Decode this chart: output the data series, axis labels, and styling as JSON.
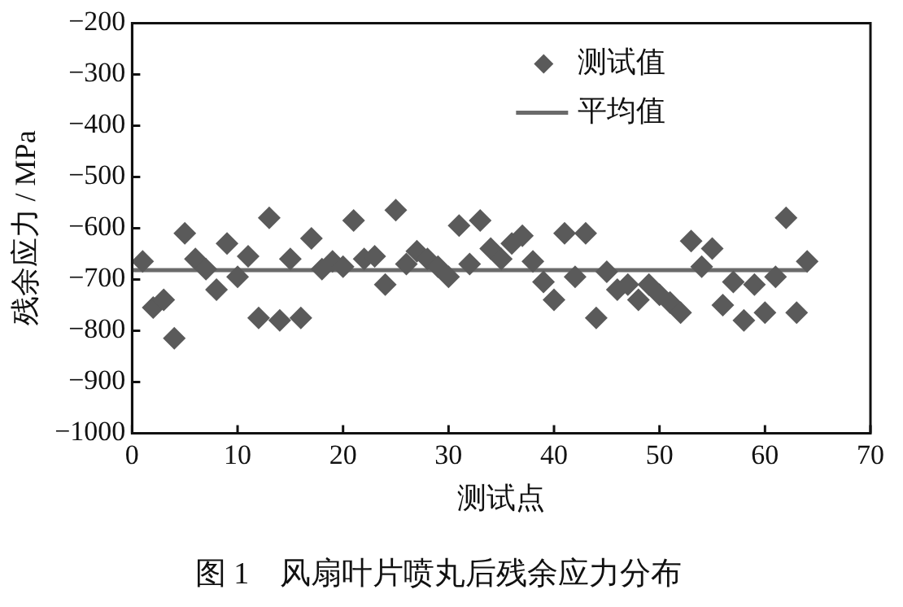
{
  "chart_data": {
    "type": "scatter",
    "title": "图 1　风扇叶片喷丸后残余应力分布",
    "xlabel": "测试点",
    "ylabel": "残余应力 / MPa",
    "xlim": [
      0,
      70
    ],
    "xticks": [
      0,
      10,
      20,
      30,
      40,
      50,
      60,
      70
    ],
    "ylim": [
      -1000,
      -200
    ],
    "yticks": [
      -1000,
      -900,
      -800,
      -700,
      -600,
      -500,
      -400,
      -300,
      -200
    ],
    "grid": false,
    "legend": "top right",
    "marker": "diamond",
    "series": [
      {
        "name": "测试值",
        "color": "#5a5a5a",
        "x": [
          1,
          2,
          3,
          4,
          5,
          6,
          7,
          8,
          9,
          10,
          11,
          12,
          13,
          14,
          15,
          16,
          17,
          18,
          19,
          20,
          21,
          22,
          23,
          24,
          25,
          26,
          27,
          28,
          29,
          30,
          31,
          32,
          33,
          34,
          35,
          36,
          37,
          38,
          39,
          40,
          41,
          42,
          43,
          44,
          45,
          46,
          47,
          48,
          49,
          50,
          51,
          52,
          53,
          54,
          55,
          56,
          57,
          58,
          59,
          60,
          61,
          62,
          63,
          64
        ],
        "values": [
          -665,
          -755,
          -740,
          -815,
          -610,
          -660,
          -680,
          -720,
          -630,
          -695,
          -655,
          -775,
          -580,
          -780,
          -660,
          -775,
          -620,
          -680,
          -665,
          -675,
          -585,
          -660,
          -655,
          -710,
          -565,
          -670,
          -645,
          -660,
          -675,
          -695,
          -595,
          -670,
          -585,
          -640,
          -660,
          -630,
          -615,
          -665,
          -705,
          -740,
          -610,
          -695,
          -610,
          -775,
          -685,
          -720,
          -710,
          -740,
          -710,
          -730,
          -745,
          -765,
          -625,
          -675,
          -640,
          -750,
          -705,
          -780,
          -710,
          -765,
          -695,
          -580,
          -765,
          -665
        ]
      },
      {
        "name": "平均值",
        "type": "line",
        "color": "#6a6a6a",
        "x": [
          0,
          64
        ],
        "values": [
          -682,
          -682
        ],
        "line_style": "solid",
        "marker": "none"
      }
    ]
  }
}
